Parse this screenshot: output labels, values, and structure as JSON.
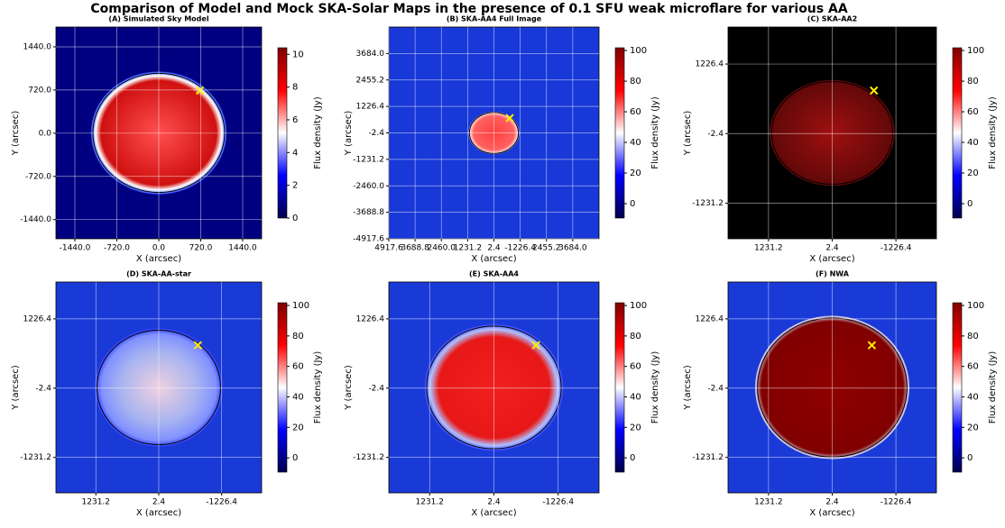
{
  "title": "Comparison of Model and Mock SKA-Solar Maps in the presence of 0.1 SFU weak microflare for various AA",
  "chart_data": [
    {
      "type": "heatmap",
      "title": "(A) Simulated Sky Model",
      "xlabel": "X (arcsec)",
      "ylabel": "Y (arcsec)",
      "grid": true,
      "xlim": [
        -1765,
        1765
      ],
      "ylim": [
        -1760,
        1770
      ],
      "xticks": [
        {
          "value": -1440,
          "label": "-1440.0"
        },
        {
          "value": -720,
          "label": "-720.0"
        },
        {
          "value": 0,
          "label": "0.0"
        },
        {
          "value": 720,
          "label": "720.0"
        },
        {
          "value": 1440,
          "label": "1440.0"
        }
      ],
      "yticks": [
        {
          "value": -1440,
          "label": "-1440.0"
        },
        {
          "value": -720,
          "label": "-720.0"
        },
        {
          "value": 0,
          "label": "0.0"
        },
        {
          "value": 720,
          "label": "720.0"
        },
        {
          "value": 1440,
          "label": "1440.0"
        }
      ],
      "colorbar_label": "Flux density (Jy)",
      "clim": [
        0,
        10.4
      ],
      "cticks": [
        0,
        2,
        4,
        6,
        8,
        10
      ]
    },
    {
      "type": "heatmap",
      "title": "(B) SKA-AA4 Full Image",
      "xlabel": "X (arcsec)",
      "ylabel": "Y (arcsec)",
      "grid": true,
      "xlim": [
        4917.6,
        -4913
      ],
      "ylim": [
        -4917.6,
        4913
      ],
      "xticks": [
        4917.6,
        3688.8,
        {
          "value": 2460,
          "label": "2460.0"
        },
        1231.2,
        2.4,
        -1226.4,
        {
          "value": -2455.2,
          "label": "2455.2"
        },
        {
          "value": -3684,
          "label": "3684.0"
        }
      ],
      "yticks": [
        -4917.6,
        -3688.8,
        {
          "value": -2460,
          "label": "-2460.0"
        },
        -1231.2,
        -2.4,
        1226.4,
        2455.2,
        {
          "value": 3684,
          "label": "3684.0"
        }
      ],
      "colorbar_label": "Flux density (Jy)",
      "clim": [
        -9.4,
        101.8
      ],
      "cticks": [
        0,
        20,
        40,
        60,
        80,
        100
      ]
    },
    {
      "type": "heatmap",
      "title": "(C) SKA-AA2",
      "xlabel": "X (arcsec)",
      "ylabel": "Y (arcsec)",
      "grid": true,
      "xlim": [
        2012,
        -2008
      ],
      "ylim": [
        -1860,
        1880
      ],
      "xticks": [
        1231.2,
        2.4,
        -1226.4
      ],
      "yticks": [
        -1231.2,
        -2.4,
        1226.4
      ],
      "colorbar_label": "Flux density (Jy)",
      "clim": [
        -9.4,
        101.8
      ],
      "cticks": [
        0,
        20,
        40,
        60,
        80,
        100
      ]
    },
    {
      "type": "heatmap",
      "title": "(D) SKA-AA-star",
      "xlabel": "X (arcsec)",
      "ylabel": "Y (arcsec)",
      "grid": true,
      "xlim": [
        2012,
        -2008
      ],
      "ylim": [
        -1860,
        1880
      ],
      "xticks": [
        1231.2,
        2.4,
        -1226.4
      ],
      "yticks": [
        -1231.2,
        -2.4,
        1226.4
      ],
      "colorbar_label": "Flux density (Jy)",
      "clim": [
        -9.4,
        101.8
      ],
      "cticks": [
        0,
        20,
        40,
        60,
        80,
        100
      ]
    },
    {
      "type": "heatmap",
      "title": "(E) SKA-AA4",
      "xlabel": "X (arcsec)",
      "ylabel": "Y (arcsec)",
      "grid": true,
      "xlim": [
        2012,
        -2008
      ],
      "ylim": [
        -1860,
        1880
      ],
      "xticks": [
        1231.2,
        2.4,
        -1226.4
      ],
      "yticks": [
        -1231.2,
        -2.4,
        1226.4
      ],
      "colorbar_label": "Flux density (Jy)",
      "clim": [
        -9.4,
        101.8
      ],
      "cticks": [
        0,
        20,
        40,
        60,
        80,
        100
      ]
    },
    {
      "type": "heatmap",
      "title": "(F) NWA",
      "xlabel": "X (arcsec)",
      "ylabel": "Y (arcsec)",
      "grid": true,
      "xlim": [
        2012,
        -2008
      ],
      "ylim": [
        -1860,
        1880
      ],
      "xticks": [
        1231.2,
        2.4,
        -1226.4
      ],
      "yticks": [
        -1231.2,
        -2.4,
        1226.4
      ],
      "colorbar_label": "Flux density (Jy)",
      "clim": [
        -9.4,
        101.8
      ],
      "cticks": [
        0,
        20,
        40,
        60,
        80,
        100
      ]
    }
  ]
}
